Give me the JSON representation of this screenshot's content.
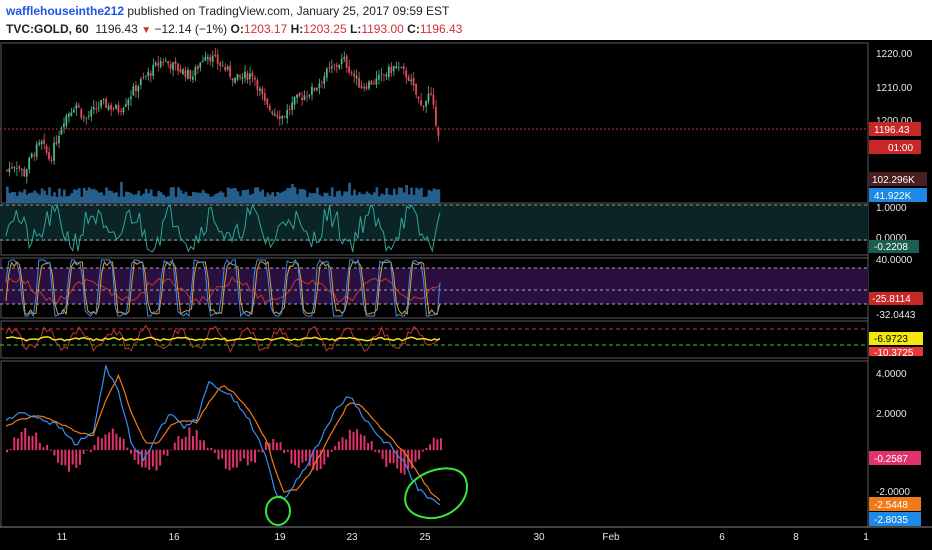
{
  "header": {
    "user": "wafflehouseinthe212",
    "published_text": " published on TradingView.com, January 25, 2017 09:59 EST",
    "symbol": "TVC:GOLD, 60",
    "last": "1196.43",
    "change": "−12.14 (−1%)",
    "open_label": "O:",
    "open": "1203.17",
    "high_label": "H:",
    "high": "1203.25",
    "low_label": "L:",
    "low": "1193.00",
    "close_label": "C:",
    "close": "1196.43"
  },
  "colors": {
    "background": "#000000",
    "up_candle": "#53b987",
    "down_candle": "#eb4d5c",
    "volume": "#2d6fa3",
    "rsi_line": "#2fa59a",
    "stoch_k": "#3b8cf0",
    "stoch_d": "#e0a030",
    "macd_line": "#3b8cf0",
    "signal_line": "#f07a1a",
    "histogram": "#e0336b",
    "annotation": "#39e639"
  },
  "price_axis": {
    "ticks": [
      "1220.00",
      "1210.00",
      "1200.00"
    ],
    "last_price_tag": "1196.43",
    "countdown_tag": "01:00",
    "volume_tags": [
      "102.296K",
      "41.922K"
    ]
  },
  "rsi_panel": {
    "upper_label": "1.0000",
    "lower_label": "0.0000",
    "value_tag": "-0.2208"
  },
  "stoch_panel": {
    "upper_label": "40.0000",
    "lower_label": "-32.0443",
    "value_tag": "-25.8114"
  },
  "cci_panel": {
    "value_tag_yellow": "-6.9723",
    "value_tag_red": "-10.3725"
  },
  "macd_panel": {
    "ticks": [
      "4.0000",
      "2.0000",
      "-2.0000"
    ],
    "histogram_tag": "-0.2587",
    "signal_tag": "-2.5448",
    "macd_tag": "-2.8035"
  },
  "time_axis": {
    "labels": [
      "11",
      "16",
      "19",
      "23",
      "25",
      "30",
      "Feb",
      "6",
      "8",
      "1"
    ]
  },
  "chart_data": {
    "type": "candlestick",
    "symbol": "TVC:GOLD",
    "interval": "60",
    "ohlc_last": {
      "open": 1203.17,
      "high": 1203.25,
      "low": 1193.0,
      "close": 1196.43
    },
    "price_ticks": [
      1220,
      1210,
      1200
    ],
    "close_path": [
      [
        0,
        1185
      ],
      [
        0.02,
        1187
      ],
      [
        0.04,
        1184
      ],
      [
        0.06,
        1190
      ],
      [
        0.08,
        1193
      ],
      [
        0.1,
        1188
      ],
      [
        0.13,
        1200
      ],
      [
        0.16,
        1205
      ],
      [
        0.18,
        1200
      ],
      [
        0.22,
        1205
      ],
      [
        0.26,
        1203
      ],
      [
        0.3,
        1210
      ],
      [
        0.33,
        1214
      ],
      [
        0.36,
        1218
      ],
      [
        0.4,
        1215
      ],
      [
        0.43,
        1213
      ],
      [
        0.46,
        1220
      ],
      [
        0.5,
        1216
      ],
      [
        0.53,
        1212
      ],
      [
        0.57,
        1214
      ],
      [
        0.6,
        1204
      ],
      [
        0.64,
        1201
      ],
      [
        0.67,
        1206
      ],
      [
        0.71,
        1209
      ],
      [
        0.74,
        1214
      ],
      [
        0.78,
        1218
      ],
      [
        0.82,
        1210
      ],
      [
        0.86,
        1212
      ],
      [
        0.9,
        1216
      ],
      [
        0.93,
        1213
      ],
      [
        0.96,
        1204
      ],
      [
        0.98,
        1208
      ],
      [
        1.0,
        1196.43
      ]
    ],
    "macd_tags": {
      "histogram": -0.2587,
      "signal": -2.5448,
      "macd": -2.8035
    },
    "time_labels": [
      "11",
      "16",
      "19",
      "23",
      "25",
      "30",
      "Feb",
      "6",
      "8",
      "1"
    ]
  }
}
